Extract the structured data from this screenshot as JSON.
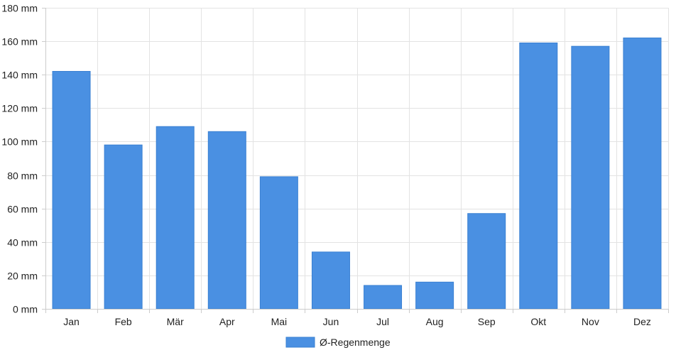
{
  "chart_data": {
    "type": "bar",
    "title": "",
    "xlabel": "",
    "ylabel": "",
    "categories": [
      "Jan",
      "Feb",
      "Mär",
      "Apr",
      "Mai",
      "Jun",
      "Jul",
      "Aug",
      "Sep",
      "Okt",
      "Nov",
      "Dez"
    ],
    "series": [
      {
        "name": "Ø-Regenmenge",
        "color": "#4a90e2",
        "values": [
          142,
          98,
          109,
          106,
          79,
          34,
          14,
          16,
          57,
          159,
          157,
          162
        ]
      }
    ],
    "ylim": [
      0,
      180
    ],
    "yticks": [
      0,
      20,
      40,
      60,
      80,
      100,
      120,
      140,
      160,
      180
    ],
    "ytick_labels": [
      "0 mm",
      "20 mm",
      "40 mm",
      "60 mm",
      "80 mm",
      "100 mm",
      "120 mm",
      "140 mm",
      "160 mm",
      "180 mm"
    ],
    "grid": true,
    "legend_position": "bottom-center"
  }
}
